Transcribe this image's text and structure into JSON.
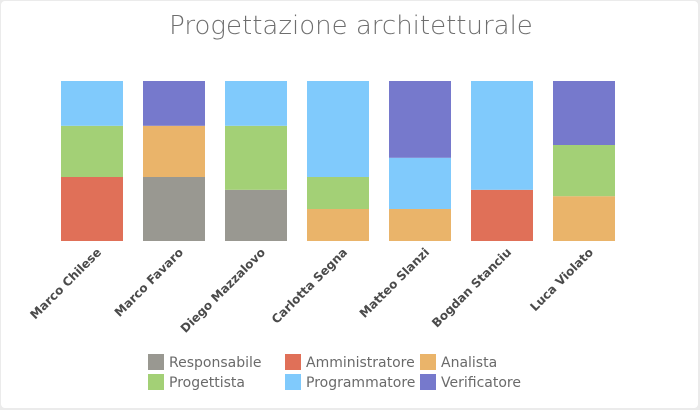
{
  "chart_data": {
    "type": "bar",
    "stacked": true,
    "title": "Progettazione architetturale",
    "categories": [
      "Marco Chilese",
      "Marco Favaro",
      "Diego Mazzalovo",
      "Carlotta Segna",
      "Matteo Slanzi",
      "Bogdan Stanciu",
      "Luca Violato"
    ],
    "ylim": [
      0,
      100
    ],
    "grid": false,
    "legend_position": "bottom",
    "series": [
      {
        "name": "Responsabile",
        "color": "#999891",
        "values": [
          0,
          40,
          32,
          0,
          0,
          0,
          0
        ]
      },
      {
        "name": "Amministratore",
        "color": "#e07058",
        "values": [
          40,
          0,
          0,
          0,
          0,
          32,
          0
        ]
      },
      {
        "name": "Analista",
        "color": "#eab46a",
        "values": [
          0,
          32,
          0,
          20,
          20,
          0,
          28
        ]
      },
      {
        "name": "Progettista",
        "color": "#a3d076",
        "values": [
          32,
          0,
          40,
          20,
          0,
          0,
          32
        ]
      },
      {
        "name": "Programmatore",
        "color": "#80cafc",
        "values": [
          28,
          0,
          28,
          60,
          32,
          68,
          0
        ]
      },
      {
        "name": "Verificatore",
        "color": "#7679cc",
        "values": [
          0,
          28,
          0,
          0,
          48,
          0,
          40
        ]
      }
    ]
  }
}
